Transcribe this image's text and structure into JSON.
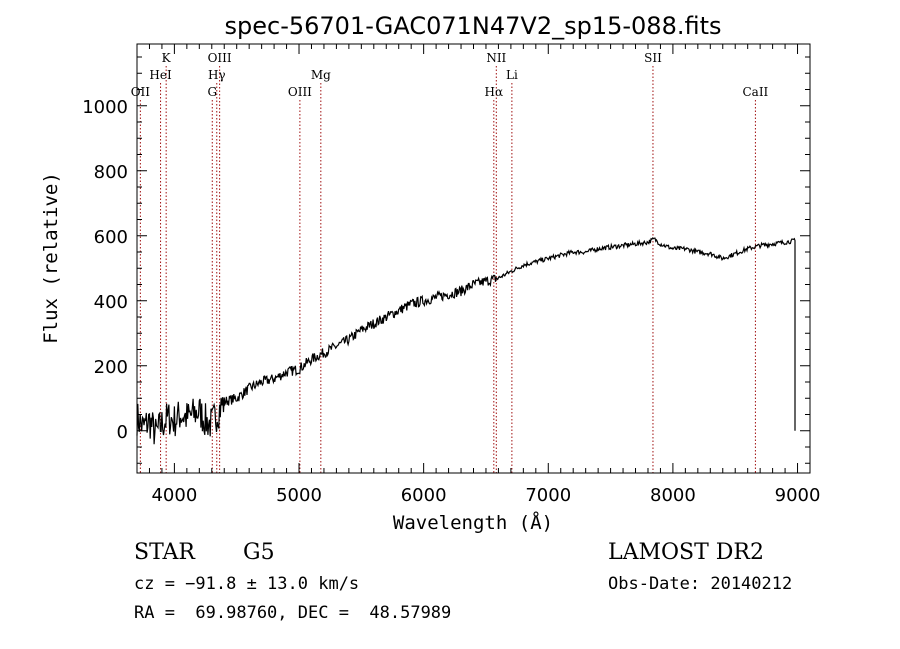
{
  "chart_data": {
    "type": "line",
    "title": "spec-56701-GAC071N47V2_sp15-088.fits",
    "xlabel": "Wavelength (Å)",
    "ylabel": "Flux (relative)",
    "xlim": [
      3700,
      9100
    ],
    "ylim": [
      -130,
      1190
    ],
    "x_ticks": [
      4000,
      5000,
      6000,
      7000,
      8000,
      9000
    ],
    "y_ticks": [
      0,
      200,
      400,
      600,
      800,
      1000
    ],
    "grid": false,
    "series": [
      {
        "x": [
          3700,
          3750,
          3800,
          3850,
          3900,
          3950,
          4000,
          4050,
          4100,
          4150,
          4200,
          4250,
          4300,
          4350,
          4400,
          4500,
          4600,
          4700,
          4800,
          4900,
          5000,
          5100,
          5200,
          5300,
          5400,
          5500,
          5600,
          5700,
          5800,
          5900,
          6000,
          6100,
          6200,
          6300,
          6400,
          6500,
          6600,
          6700,
          6800,
          6900,
          7000,
          7100,
          7200,
          7300,
          7400,
          7500,
          7600,
          7700,
          7800,
          7850,
          7900,
          8000,
          8100,
          8200,
          8300,
          8400,
          8500,
          8600,
          8700,
          8800,
          8900,
          8980
        ],
        "y": [
          40,
          10,
          30,
          -10,
          20,
          40,
          30,
          50,
          40,
          50,
          60,
          30,
          20,
          60,
          90,
          100,
          130,
          150,
          160,
          180,
          190,
          220,
          240,
          260,
          280,
          310,
          330,
          350,
          370,
          390,
          400,
          410,
          420,
          430,
          450,
          460,
          470,
          490,
          510,
          520,
          530,
          540,
          550,
          550,
          560,
          565,
          570,
          575,
          580,
          590,
          575,
          560,
          560,
          550,
          545,
          530,
          545,
          560,
          570,
          575,
          580,
          585
        ]
      }
    ],
    "lines": [
      {
        "name": "OII",
        "x": 3727,
        "row": 3
      },
      {
        "name": "K",
        "x": 3934,
        "row": 1
      },
      {
        "name": "HeI",
        "x": 3889,
        "row": 2
      },
      {
        "name": "OIII",
        "x": 4363,
        "row": 1
      },
      {
        "name": "Hγ",
        "x": 4340,
        "row": 2
      },
      {
        "name": "G",
        "x": 4304,
        "row": 3
      },
      {
        "name": "OIII",
        "x": 5007,
        "row": 3
      },
      {
        "name": "Mg",
        "x": 5175,
        "row": 2
      },
      {
        "name": "NII",
        "x": 6583,
        "row": 1
      },
      {
        "name": "Li",
        "x": 6708,
        "row": 2
      },
      {
        "name": "Hα",
        "x": 6563,
        "row": 3
      },
      {
        "name": "SII",
        "x": 7840,
        "row": 1
      },
      {
        "name": "CaII",
        "x": 8662,
        "row": 3
      }
    ]
  },
  "info": {
    "object_type": "STAR",
    "subclass": "G5",
    "survey": "LAMOST DR2",
    "cz": "cz = −91.8 ± 13.0 km/s",
    "obs_date": "Obs-Date: 20140212",
    "radec": "RA =  69.98760, DEC =  48.57989"
  },
  "colors": {
    "spectrum": "#000000",
    "line_marker": "#a01010",
    "axis": "#000000"
  }
}
